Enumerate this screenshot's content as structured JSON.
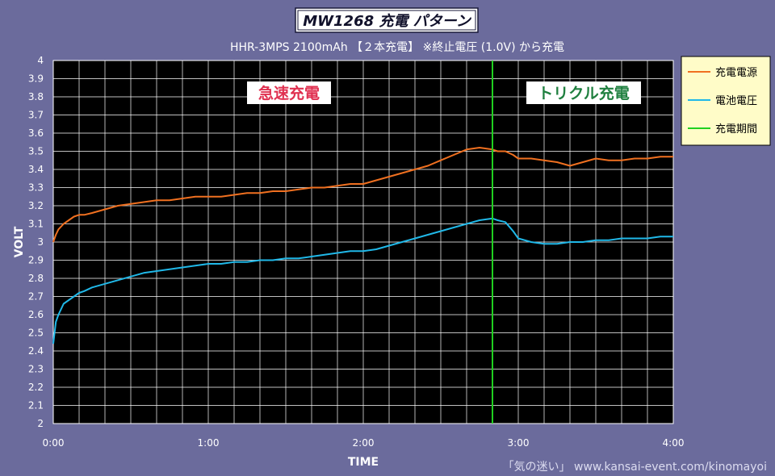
{
  "chart_data": {
    "type": "line",
    "title": "MW1268 充電 パターン",
    "subtitle": "HHR-3MPS 2100mAh 【２本充電】 ※終止電圧 (1.0V) から充電",
    "xlabel": "TIME",
    "ylabel": "VOLT",
    "xlim": [
      0,
      240
    ],
    "ylim": [
      2,
      4
    ],
    "x_ticks": [
      {
        "value": 0,
        "label": "0:00"
      },
      {
        "value": 60,
        "label": "1:00"
      },
      {
        "value": 120,
        "label": "2:00"
      },
      {
        "value": 180,
        "label": "3:00"
      },
      {
        "value": 240,
        "label": "4:00"
      }
    ],
    "y_ticks": [
      2,
      2.1,
      2.2,
      2.3,
      2.4,
      2.5,
      2.6,
      2.7,
      2.8,
      2.9,
      3,
      3.1,
      3.2,
      3.3,
      3.4,
      3.5,
      3.6,
      3.7,
      3.8,
      3.9,
      4
    ],
    "y_tick_labels": [
      "2",
      "2.1",
      "2.2",
      "2.3",
      "2.4",
      "2.5",
      "2.6",
      "2.7",
      "2.8",
      "2.9",
      "3",
      "3.1",
      "3.2",
      "3.3",
      "3.4",
      "3.5",
      "3.6",
      "3.7",
      "3.8",
      "3.9",
      "4"
    ],
    "grid": true,
    "legend_position": "right",
    "series": [
      {
        "name": "充電電源",
        "color": "#f07020",
        "x": [
          0,
          1,
          2,
          4,
          6,
          8,
          10,
          12,
          15,
          20,
          25,
          30,
          35,
          40,
          45,
          50,
          55,
          60,
          65,
          70,
          75,
          80,
          85,
          90,
          95,
          100,
          105,
          110,
          115,
          120,
          125,
          130,
          135,
          140,
          145,
          150,
          155,
          160,
          165,
          170,
          172,
          175,
          178,
          180,
          185,
          190,
          195,
          200,
          205,
          210,
          215,
          220,
          225,
          230,
          235,
          240
        ],
        "y": [
          3.0,
          3.04,
          3.07,
          3.1,
          3.12,
          3.14,
          3.15,
          3.15,
          3.16,
          3.18,
          3.2,
          3.21,
          3.22,
          3.23,
          3.23,
          3.24,
          3.25,
          3.25,
          3.25,
          3.26,
          3.27,
          3.27,
          3.28,
          3.28,
          3.29,
          3.3,
          3.3,
          3.31,
          3.32,
          3.32,
          3.34,
          3.36,
          3.38,
          3.4,
          3.42,
          3.45,
          3.48,
          3.51,
          3.52,
          3.51,
          3.5,
          3.5,
          3.48,
          3.46,
          3.46,
          3.45,
          3.44,
          3.42,
          3.44,
          3.46,
          3.45,
          3.45,
          3.46,
          3.46,
          3.47,
          3.47
        ]
      },
      {
        "name": "電池電圧",
        "color": "#20b8e8",
        "x": [
          0,
          0.5,
          1,
          2,
          3,
          4,
          6,
          8,
          10,
          12,
          15,
          20,
          25,
          30,
          35,
          40,
          45,
          50,
          55,
          60,
          65,
          70,
          75,
          80,
          85,
          90,
          95,
          100,
          105,
          110,
          115,
          120,
          125,
          130,
          135,
          140,
          145,
          150,
          155,
          160,
          165,
          170,
          172,
          175,
          178,
          180,
          185,
          190,
          195,
          200,
          205,
          210,
          215,
          220,
          225,
          230,
          235,
          240
        ],
        "y": [
          2.44,
          2.5,
          2.56,
          2.6,
          2.63,
          2.66,
          2.68,
          2.7,
          2.72,
          2.73,
          2.75,
          2.77,
          2.79,
          2.81,
          2.83,
          2.84,
          2.85,
          2.86,
          2.87,
          2.88,
          2.88,
          2.89,
          2.89,
          2.9,
          2.9,
          2.91,
          2.91,
          2.92,
          2.93,
          2.94,
          2.95,
          2.95,
          2.96,
          2.98,
          3.0,
          3.02,
          3.04,
          3.06,
          3.08,
          3.1,
          3.12,
          3.13,
          3.12,
          3.11,
          3.06,
          3.02,
          3.0,
          2.99,
          2.99,
          3.0,
          3.0,
          3.01,
          3.01,
          3.02,
          3.02,
          3.02,
          3.03,
          3.03
        ]
      }
    ],
    "charging_period": {
      "name": "充電期間",
      "x": 170,
      "color": "#20d020"
    },
    "annotations": [
      {
        "text": "急速充電",
        "color": "#e03050"
      },
      {
        "text": "トリクル充電",
        "color": "#208040"
      }
    ],
    "footer": "「気の迷い」 www.kansai-event.com/kinomayoi"
  }
}
